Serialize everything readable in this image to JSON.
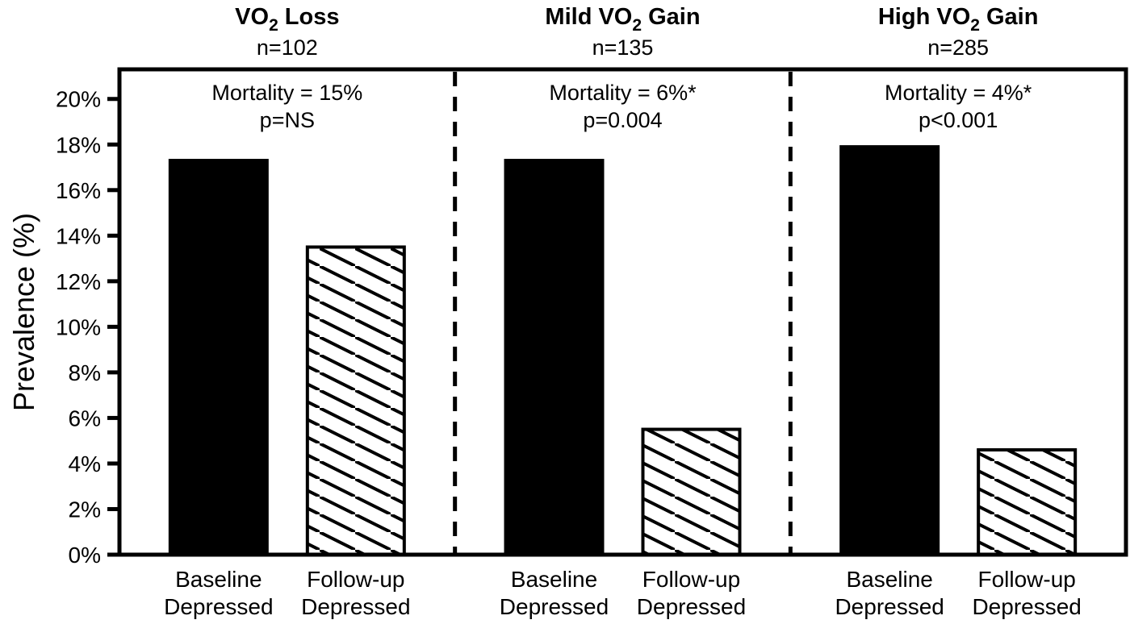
{
  "figure": {
    "background_color": "#ffffff",
    "foreground_color": "#000000"
  },
  "chart_data": {
    "type": "bar",
    "title": "",
    "ylabel": "Prevalence (%)",
    "ylim": [
      0,
      21.3
    ],
    "yticks": [
      0,
      2,
      4,
      6,
      8,
      10,
      12,
      14,
      16,
      18,
      20
    ],
    "ytick_suffix": "%",
    "grid": false,
    "legend": "none",
    "categories": [
      "Baseline Depressed",
      "Follow-up Depressed"
    ],
    "x_tick_labels": [
      [
        "Baseline",
        "Depressed"
      ],
      [
        "Follow-up",
        "Depressed"
      ]
    ],
    "bar_styles": [
      "solid-black",
      "diagonal-hatch"
    ],
    "panels": [
      {
        "title_pre": "VO",
        "title_sub": "2",
        "title_post": " Loss",
        "n_label": "n=102",
        "mortality_line": "Mortality = 15%",
        "p_line": "p=NS",
        "series": [
          {
            "name": "Baseline Depressed",
            "value": 17.3
          },
          {
            "name": "Follow-up Depressed",
            "value": 13.5
          }
        ]
      },
      {
        "title_pre": "Mild VO",
        "title_sub": "2",
        "title_post": " Gain",
        "n_label": "n=135",
        "mortality_line": "Mortality = 6%*",
        "p_line": "p=0.004",
        "series": [
          {
            "name": "Baseline Depressed",
            "value": 17.3
          },
          {
            "name": "Follow-up Depressed",
            "value": 5.5
          }
        ]
      },
      {
        "title_pre": "High VO",
        "title_sub": "2",
        "title_post": " Gain",
        "n_label": "n=285",
        "mortality_line": "Mortality = 4%*",
        "p_line": "p<0.001",
        "series": [
          {
            "name": "Baseline Depressed",
            "value": 17.9
          },
          {
            "name": "Follow-up Depressed",
            "value": 4.6
          }
        ]
      }
    ]
  }
}
